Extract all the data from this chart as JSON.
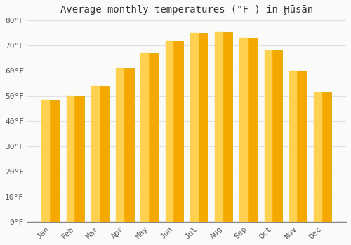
{
  "title": "Average monthly temperatures (°F ) in Ḩūsān",
  "months": [
    "Jan",
    "Feb",
    "Mar",
    "Apr",
    "May",
    "Jun",
    "Jul",
    "Aug",
    "Sep",
    "Oct",
    "Nov",
    "Dec"
  ],
  "values": [
    48.2,
    50.0,
    54.0,
    61.0,
    67.0,
    72.0,
    75.0,
    75.2,
    73.2,
    68.0,
    60.0,
    51.5
  ],
  "bar_color_right": "#F5A800",
  "bar_color_left": "#FFD150",
  "bar_edge_color": "#DDAA00",
  "ylim": [
    0,
    80
  ],
  "yticks": [
    0,
    10,
    20,
    30,
    40,
    50,
    60,
    70,
    80
  ],
  "ytick_labels": [
    "0°F",
    "10°F",
    "20°F",
    "30°F",
    "40°F",
    "50°F",
    "60°F",
    "70°F",
    "80°F"
  ],
  "background_color": "#FAFAF8",
  "grid_color": "#E0E0E0",
  "title_fontsize": 10,
  "tick_fontsize": 8,
  "bar_width": 0.72
}
